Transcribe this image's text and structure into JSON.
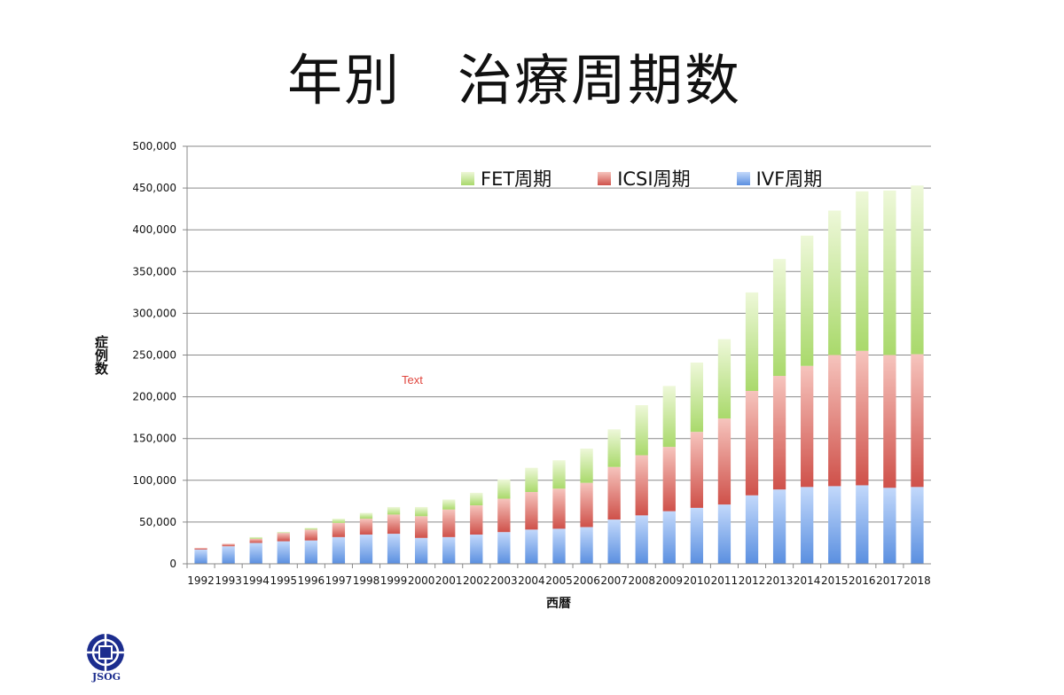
{
  "slide": {
    "title": "年別　治療周期数",
    "annotation": "Text",
    "logo_text": "JSOG"
  },
  "chart_data": {
    "type": "bar",
    "stacked": true,
    "categories": [
      "1992",
      "1993",
      "1994",
      "1995",
      "1996",
      "1997",
      "1998",
      "1999",
      "2000",
      "2001",
      "2002",
      "2003",
      "2004",
      "2005",
      "2006",
      "2007",
      "2008",
      "2009",
      "2010",
      "2011",
      "2012",
      "2013",
      "2014",
      "2015",
      "2016",
      "2017",
      "2018"
    ],
    "series": [
      {
        "name": "IVF周期",
        "color": "#5a8fe0",
        "values": [
          17000,
          21000,
          25000,
          27000,
          28000,
          32000,
          35000,
          36000,
          31000,
          32000,
          35000,
          38000,
          41000,
          42000,
          44000,
          53000,
          58000,
          63000,
          67000,
          71000,
          82000,
          89000,
          92000,
          93000,
          94000,
          91000,
          92000
        ]
      },
      {
        "name": "ICSI周期",
        "color": "#d0504a",
        "values": [
          2000,
          3000,
          5000,
          10000,
          13000,
          17000,
          19000,
          23000,
          26000,
          33000,
          35000,
          40000,
          45000,
          48000,
          53000,
          63000,
          72000,
          77000,
          91000,
          103000,
          125000,
          136000,
          145000,
          157000,
          161000,
          159000,
          159000
        ]
      },
      {
        "name": "FET周期",
        "color": "#a9d96b",
        "values": [
          0,
          0,
          2000,
          1000,
          2000,
          5000,
          7000,
          9000,
          11000,
          12000,
          15000,
          23000,
          29000,
          34000,
          41000,
          45000,
          60000,
          73000,
          83000,
          95000,
          118000,
          140000,
          156000,
          173000,
          191000,
          197000,
          202000
        ]
      }
    ],
    "xlabel": "西暦",
    "ylabel": "症例数",
    "ylim": [
      0,
      500000
    ],
    "yticks": [
      0,
      50000,
      100000,
      150000,
      200000,
      250000,
      300000,
      350000,
      400000,
      450000,
      500000
    ],
    "ytick_labels": [
      "0",
      "50,000",
      "100,000",
      "150,000",
      "200,000",
      "250,000",
      "300,000",
      "350,000",
      "400,000",
      "450,000",
      "500,000"
    ],
    "legend_order": [
      "FET周期",
      "ICSI周期",
      "IVF周期"
    ],
    "legend_position": "top-right",
    "grid": true
  }
}
